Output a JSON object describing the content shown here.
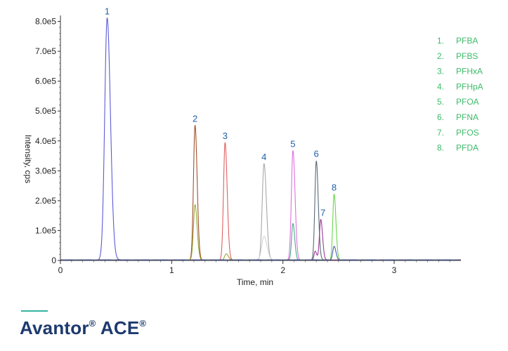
{
  "chart_data": {
    "type": "line",
    "xlabel": "Time, min",
    "ylabel": "Intensity, cps",
    "xlim": [
      0,
      3.6
    ],
    "ylim": [
      0,
      820000
    ],
    "x_ticks": [
      0,
      1,
      2,
      3
    ],
    "x_tick_labels": [
      "0",
      "1",
      "2",
      "3"
    ],
    "y_ticks": [
      0,
      100000,
      200000,
      300000,
      400000,
      500000,
      600000,
      700000,
      800000
    ],
    "y_tick_labels": [
      "0",
      "1.0e5",
      "2.0e5",
      "3.0e5",
      "4.0e5",
      "5.0e5",
      "6.0e5",
      "7.0e5",
      "8.0e5"
    ],
    "legend_position": "right",
    "series": [
      {
        "color": "#5b5bd6",
        "peaks": [
          {
            "rt": 0.42,
            "height": 810000,
            "width": 0.022
          }
        ]
      },
      {
        "color": "#a0522d",
        "peaks": [
          {
            "rt": 1.21,
            "height": 450000,
            "width": 0.014
          }
        ]
      },
      {
        "color": "#9aaa3a",
        "peaks": [
          {
            "rt": 1.21,
            "height": 185000,
            "width": 0.014
          },
          {
            "rt": 1.49,
            "height": 20000,
            "width": 0.014
          }
        ]
      },
      {
        "color": "#e06060",
        "peaks": [
          {
            "rt": 1.48,
            "height": 392000,
            "width": 0.014
          }
        ]
      },
      {
        "color": "#a8a8a8",
        "peaks": [
          {
            "rt": 1.83,
            "height": 322000,
            "width": 0.016
          }
        ]
      },
      {
        "color": "#d4d4d4",
        "peaks": [
          {
            "rt": 1.83,
            "height": 80000,
            "width": 0.02
          }
        ]
      },
      {
        "color": "#e070e0",
        "peaks": [
          {
            "rt": 2.09,
            "height": 365000,
            "width": 0.014
          }
        ]
      },
      {
        "color": "#4aa88a",
        "peaks": [
          {
            "rt": 2.09,
            "height": 122000,
            "width": 0.012
          }
        ]
      },
      {
        "color": "#5a6a7a",
        "peaks": [
          {
            "rt": 2.3,
            "height": 332000,
            "width": 0.013
          }
        ]
      },
      {
        "color": "#9a3a9a",
        "peaks": [
          {
            "rt": 2.34,
            "height": 135000,
            "width": 0.012
          },
          {
            "rt": 2.29,
            "height": 30000,
            "width": 0.01
          }
        ]
      },
      {
        "color": "#6ad64a",
        "peaks": [
          {
            "rt": 2.46,
            "height": 220000,
            "width": 0.012
          }
        ]
      },
      {
        "color": "#4a5ab0",
        "peaks": [
          {
            "rt": 2.46,
            "height": 45000,
            "width": 0.012
          }
        ]
      }
    ],
    "peak_labels": [
      {
        "text": "1",
        "x": 0.42,
        "y": 810000
      },
      {
        "text": "2",
        "x": 1.21,
        "y": 450000
      },
      {
        "text": "3",
        "x": 1.48,
        "y": 392000
      },
      {
        "text": "4",
        "x": 1.83,
        "y": 322000
      },
      {
        "text": "5",
        "x": 2.09,
        "y": 365000
      },
      {
        "text": "6",
        "x": 2.3,
        "y": 332000
      },
      {
        "text": "7",
        "x": 2.36,
        "y": 135000
      },
      {
        "text": "8",
        "x": 2.46,
        "y": 220000
      }
    ],
    "legend": [
      {
        "num": "1.",
        "name": "PFBA",
        "color": "#3dbb6a"
      },
      {
        "num": "2.",
        "name": "PFBS",
        "color": "#3dbb6a"
      },
      {
        "num": "3.",
        "name": "PFHxA",
        "color": "#3dbb6a"
      },
      {
        "num": "4.",
        "name": "PFHpA",
        "color": "#3dbb6a"
      },
      {
        "num": "5.",
        "name": "PFOA",
        "color": "#3dbb6a"
      },
      {
        "num": "6.",
        "name": "PFNA",
        "color": "#3dbb6a"
      },
      {
        "num": "7.",
        "name": "PFOS",
        "color": "#3dbb6a"
      },
      {
        "num": "8.",
        "name": "PFDA",
        "color": "#3dbb6a"
      }
    ]
  },
  "brand": {
    "name_1": "Avantor",
    "reg_1": "®",
    "name_2": " ACE",
    "reg_2": "®"
  }
}
